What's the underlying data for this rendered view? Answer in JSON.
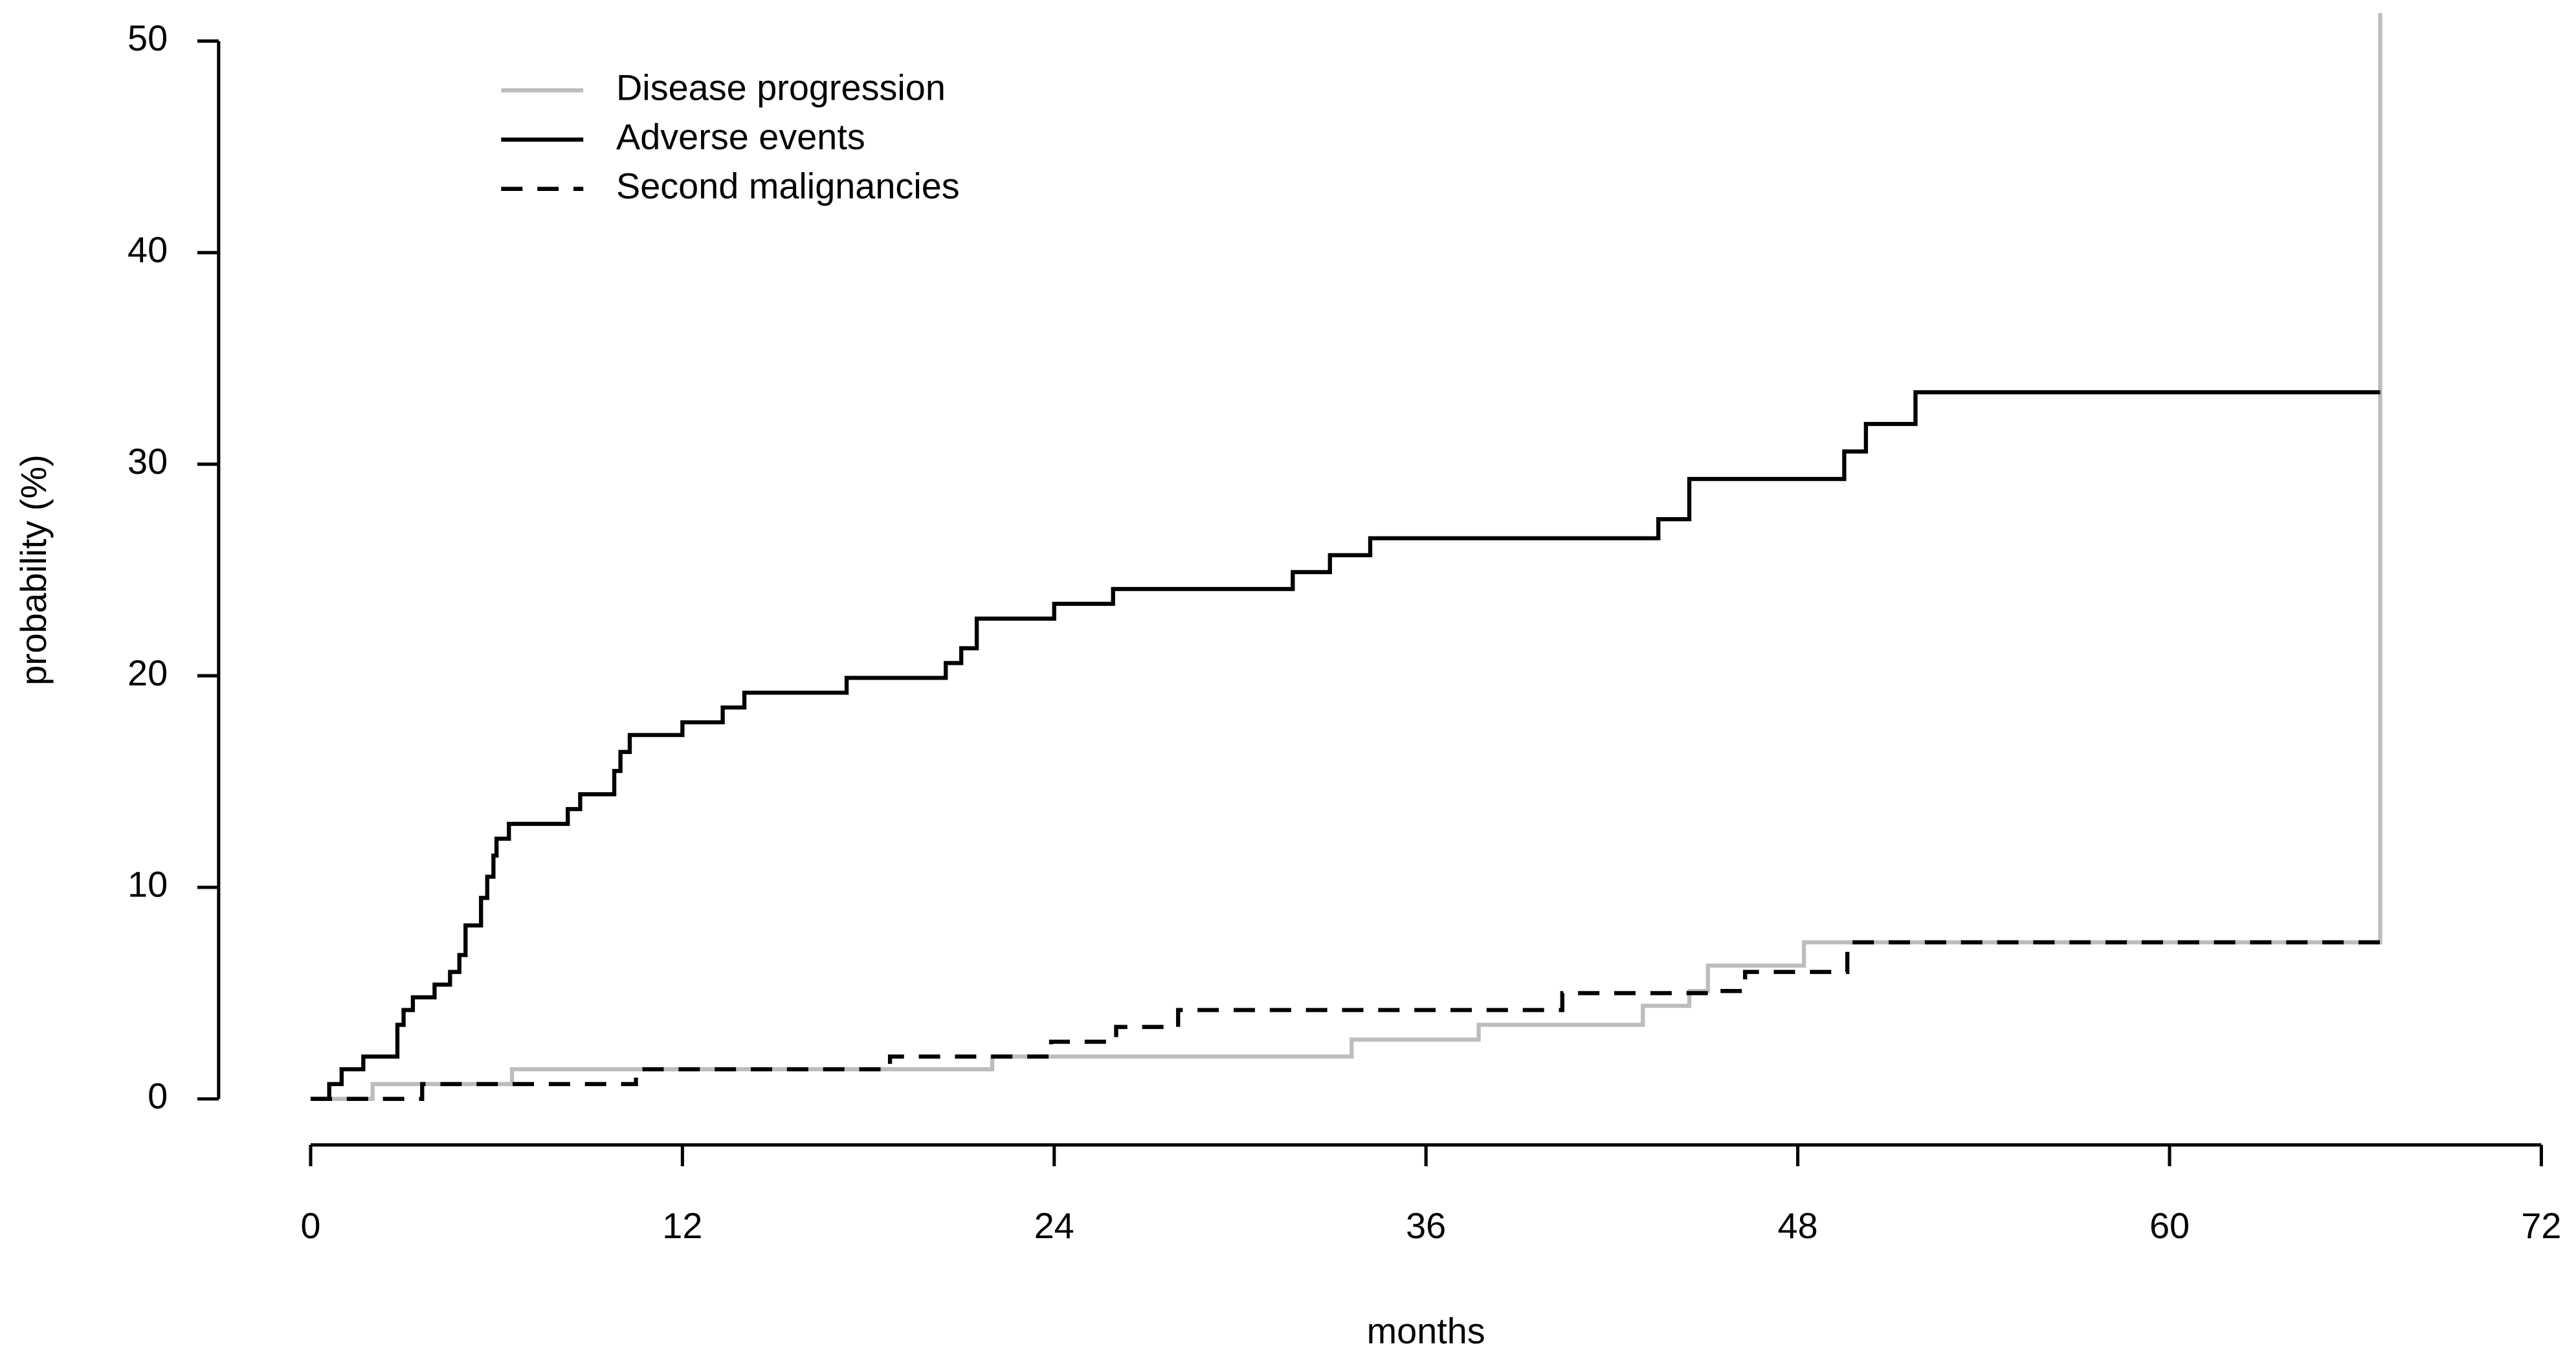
{
  "chart_data": {
    "type": "line",
    "step": "post",
    "x_label": "months",
    "y_label": "probability (%)",
    "xlim": [
      0,
      72
    ],
    "xticks": [
      0,
      12,
      24,
      36,
      48,
      60,
      72
    ],
    "ylim": [
      0,
      50
    ],
    "yticks": [
      0,
      10,
      20,
      30,
      40,
      50
    ],
    "legend": "top-left",
    "series": [
      {
        "name": "Disease progression",
        "color": "#bdbdbd",
        "dash": "solid",
        "x": [
          0,
          2,
          6.5,
          22,
          33.6,
          37.7,
          43,
          44.5,
          45.1,
          48.2,
          66.8,
          66.8
        ],
        "values": [
          0,
          0.7,
          1.4,
          2.0,
          2.8,
          3.5,
          4.4,
          5.1,
          6.3,
          7.4,
          7.4,
          100
        ]
      },
      {
        "name": "Adverse events",
        "color": "#000000",
        "dash": "solid",
        "x": [
          0,
          0.6,
          1.0,
          1.7,
          2.8,
          3.0,
          3.3,
          4.0,
          4.5,
          4.8,
          5.0,
          5.5,
          5.7,
          5.9,
          6.0,
          6.4,
          8.3,
          8.7,
          9.8,
          10.0,
          10.3,
          12.0,
          13.3,
          14.0,
          17.3,
          20.5,
          21.0,
          21.5,
          24.0,
          25.9,
          31.7,
          32.9,
          34.2,
          43.5,
          44.5,
          49.5,
          50.2,
          51.8,
          66.8
        ],
        "values": [
          0,
          0.7,
          1.4,
          2.0,
          3.5,
          4.2,
          4.8,
          5.4,
          6.0,
          6.8,
          8.2,
          9.5,
          10.5,
          11.5,
          12.3,
          13.0,
          13.7,
          14.4,
          15.5,
          16.4,
          17.2,
          17.8,
          18.5,
          19.2,
          19.9,
          20.6,
          21.3,
          22.7,
          23.4,
          24.1,
          24.9,
          25.7,
          26.5,
          27.4,
          29.3,
          30.6,
          31.9,
          33.4,
          33.4
        ]
      },
      {
        "name": "Second malignancies",
        "color": "#000000",
        "dash": "dashed",
        "x": [
          0,
          3.6,
          10.5,
          18.7,
          23.9,
          26,
          28,
          40.4,
          45.4,
          46.3,
          49.6,
          66.8
        ],
        "values": [
          0,
          0.7,
          1.4,
          2.0,
          2.7,
          3.4,
          4.2,
          5.0,
          5.1,
          6.0,
          7.4,
          7.4
        ]
      }
    ]
  }
}
